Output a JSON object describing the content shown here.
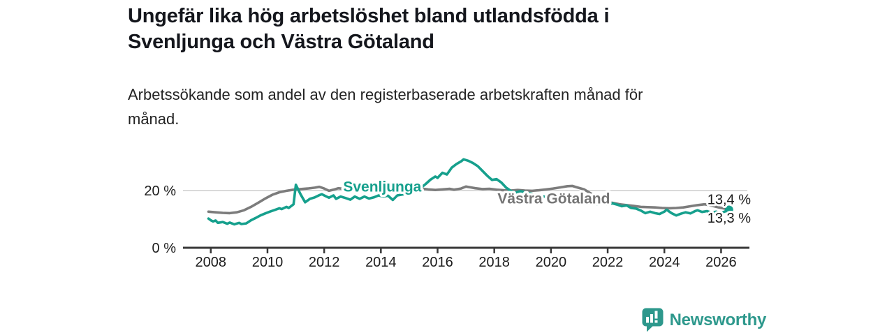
{
  "header": {
    "title_lines": [
      "Ungefär lika hög arbetslöshet bland utlandsfödda i",
      "Svenljunga och Västra Götaland"
    ],
    "subtitle_lines": [
      "Arbetssökande som andel av den registerbaserade arbetskraften månad för",
      "månad."
    ]
  },
  "footer": {
    "brand": "Newsworthy"
  },
  "colors": {
    "accent_teal": "#16a08d",
    "series_gray": "#7c7c7c",
    "gray_label": "#757575",
    "axis": "#383838",
    "grid": "#cdcdcd",
    "text": "#1c1c1c",
    "brand": "#2d988c",
    "halo": "#ffffff"
  },
  "chart_data": {
    "type": "line",
    "title": "Ungefär lika hög arbetslöshet bland utlandsfödda i Svenljunga och Västra Götaland",
    "subtitle": "Arbetssökande som andel av den registerbaserade arbetskraften månad för månad.",
    "xlabel": "",
    "ylabel": "",
    "grid": "single horizontal gridline at 20 %",
    "legend_position": "inline labels on lines",
    "x_range": [
      2007.02,
      2027.0
    ],
    "y_range": [
      0,
      35.85
    ],
    "x_ticks": [
      {
        "value": 2008,
        "label": "2008"
      },
      {
        "value": 2010,
        "label": "2010"
      },
      {
        "value": 2012,
        "label": "2012"
      },
      {
        "value": 2014,
        "label": "2014"
      },
      {
        "value": 2016,
        "label": "2016"
      },
      {
        "value": 2018,
        "label": "2018"
      },
      {
        "value": 2020,
        "label": "2020"
      },
      {
        "value": 2022,
        "label": "2022"
      },
      {
        "value": 2024,
        "label": "2024"
      },
      {
        "value": 2026,
        "label": "2026"
      }
    ],
    "y_ticks": [
      {
        "value": 0,
        "label": "0 %"
      },
      {
        "value": 20,
        "label": "20 %"
      }
    ],
    "series": [
      {
        "name": "Västra Götaland",
        "color": "#7c7c7c",
        "label_color": "#757575",
        "end_label": "13,4 %",
        "label_at": [
          2020.1,
          17.2
        ],
        "end_dot": false,
        "points": [
          [
            2007.92,
            12.6
          ],
          [
            2008.17,
            12.4
          ],
          [
            2008.42,
            12.2
          ],
          [
            2008.67,
            12.1
          ],
          [
            2008.92,
            12.4
          ],
          [
            2009.17,
            13.1
          ],
          [
            2009.42,
            14.3
          ],
          [
            2009.67,
            15.7
          ],
          [
            2009.92,
            17.2
          ],
          [
            2010.17,
            18.5
          ],
          [
            2010.42,
            19.4
          ],
          [
            2010.67,
            19.9
          ],
          [
            2010.92,
            20.3
          ],
          [
            2011.17,
            20.5
          ],
          [
            2011.42,
            20.7
          ],
          [
            2011.67,
            21.0
          ],
          [
            2011.83,
            21.3
          ],
          [
            2012.0,
            20.7
          ],
          [
            2012.17,
            19.9
          ],
          [
            2012.33,
            20.3
          ],
          [
            2012.5,
            20.8
          ],
          [
            2012.75,
            20.5
          ],
          [
            2013.0,
            20.3
          ],
          [
            2013.25,
            20.6
          ],
          [
            2013.5,
            20.4
          ],
          [
            2013.75,
            20.7
          ],
          [
            2013.92,
            21.0
          ],
          [
            2014.17,
            20.6
          ],
          [
            2014.42,
            20.5
          ],
          [
            2014.67,
            20.7
          ],
          [
            2014.92,
            20.3
          ],
          [
            2015.17,
            20.5
          ],
          [
            2015.42,
            20.7
          ],
          [
            2015.67,
            20.4
          ],
          [
            2015.92,
            20.2
          ],
          [
            2016.17,
            20.4
          ],
          [
            2016.42,
            20.6
          ],
          [
            2016.58,
            20.3
          ],
          [
            2016.83,
            20.7
          ],
          [
            2017.0,
            21.4
          ],
          [
            2017.17,
            21.1
          ],
          [
            2017.33,
            20.8
          ],
          [
            2017.58,
            20.5
          ],
          [
            2017.83,
            20.6
          ],
          [
            2018.08,
            20.3
          ],
          [
            2018.33,
            20.1
          ],
          [
            2018.58,
            20.0
          ],
          [
            2018.83,
            20.2
          ],
          [
            2019.08,
            20.0
          ],
          [
            2019.33,
            19.9
          ],
          [
            2019.58,
            20.1
          ],
          [
            2019.83,
            20.4
          ],
          [
            2020.08,
            20.7
          ],
          [
            2020.33,
            21.1
          ],
          [
            2020.58,
            21.5
          ],
          [
            2020.75,
            21.6
          ],
          [
            2020.92,
            21.1
          ],
          [
            2021.17,
            20.4
          ],
          [
            2021.42,
            18.9
          ],
          [
            2021.67,
            16.9
          ],
          [
            2021.92,
            15.9
          ],
          [
            2022.17,
            15.7
          ],
          [
            2022.42,
            15.2
          ],
          [
            2022.67,
            14.9
          ],
          [
            2022.92,
            14.6
          ],
          [
            2023.17,
            14.3
          ],
          [
            2023.42,
            14.2
          ],
          [
            2023.67,
            14.1
          ],
          [
            2023.92,
            13.9
          ],
          [
            2024.17,
            13.8
          ],
          [
            2024.42,
            13.9
          ],
          [
            2024.67,
            14.1
          ],
          [
            2024.92,
            14.5
          ],
          [
            2025.17,
            14.9
          ],
          [
            2025.42,
            15.2
          ],
          [
            2025.58,
            14.9
          ],
          [
            2025.75,
            14.5
          ],
          [
            2025.92,
            14.1
          ],
          [
            2026.28,
            13.4
          ]
        ]
      },
      {
        "name": "Svenljunga",
        "color": "#16a08d",
        "label_color": "#16a08d",
        "end_label": "13,3 %",
        "label_at": [
          2014.05,
          21.3
        ],
        "end_dot": true,
        "points": [
          [
            2007.92,
            10.2
          ],
          [
            2008.0,
            9.6
          ],
          [
            2008.08,
            9.2
          ],
          [
            2008.17,
            9.5
          ],
          [
            2008.25,
            8.7
          ],
          [
            2008.42,
            9.0
          ],
          [
            2008.58,
            8.4
          ],
          [
            2008.67,
            8.8
          ],
          [
            2008.83,
            8.2
          ],
          [
            2009.0,
            8.7
          ],
          [
            2009.08,
            8.3
          ],
          [
            2009.25,
            8.5
          ],
          [
            2009.42,
            9.6
          ],
          [
            2009.58,
            10.4
          ],
          [
            2009.75,
            11.3
          ],
          [
            2009.92,
            12.0
          ],
          [
            2010.08,
            12.6
          ],
          [
            2010.25,
            13.2
          ],
          [
            2010.42,
            13.8
          ],
          [
            2010.5,
            13.5
          ],
          [
            2010.67,
            14.3
          ],
          [
            2010.75,
            13.9
          ],
          [
            2010.92,
            15.2
          ],
          [
            2011.0,
            22.0
          ],
          [
            2011.17,
            18.6
          ],
          [
            2011.33,
            15.9
          ],
          [
            2011.5,
            17.1
          ],
          [
            2011.67,
            17.6
          ],
          [
            2011.83,
            18.4
          ],
          [
            2011.92,
            18.7
          ],
          [
            2012.08,
            17.9
          ],
          [
            2012.17,
            17.5
          ],
          [
            2012.33,
            18.3
          ],
          [
            2012.42,
            17.1
          ],
          [
            2012.58,
            17.9
          ],
          [
            2012.75,
            17.4
          ],
          [
            2012.92,
            16.8
          ],
          [
            2013.08,
            17.9
          ],
          [
            2013.25,
            17.1
          ],
          [
            2013.42,
            17.9
          ],
          [
            2013.58,
            17.2
          ],
          [
            2013.75,
            17.6
          ],
          [
            2013.92,
            18.3
          ],
          [
            2014.08,
            17.9
          ],
          [
            2014.25,
            18.2
          ],
          [
            2014.42,
            16.7
          ],
          [
            2014.58,
            18.3
          ],
          [
            2014.75,
            18.6
          ],
          [
            2014.92,
            18.9
          ],
          [
            2015.08,
            19.4
          ],
          [
            2015.25,
            20.1
          ],
          [
            2015.42,
            21.0
          ],
          [
            2015.58,
            22.3
          ],
          [
            2015.75,
            23.8
          ],
          [
            2015.92,
            24.9
          ],
          [
            2016.0,
            24.4
          ],
          [
            2016.17,
            26.2
          ],
          [
            2016.33,
            25.6
          ],
          [
            2016.5,
            28.0
          ],
          [
            2016.67,
            29.3
          ],
          [
            2016.83,
            30.2
          ],
          [
            2016.92,
            30.9
          ],
          [
            2017.08,
            30.4
          ],
          [
            2017.25,
            29.6
          ],
          [
            2017.42,
            28.5
          ],
          [
            2017.58,
            26.9
          ],
          [
            2017.75,
            25.2
          ],
          [
            2017.92,
            23.7
          ],
          [
            2018.08,
            24.0
          ],
          [
            2018.25,
            22.8
          ],
          [
            2018.42,
            21.0
          ],
          [
            2018.58,
            19.9
          ],
          [
            2018.75,
            19.3
          ],
          [
            2018.92,
            19.8
          ],
          [
            2019.17,
            19.2
          ],
          [
            2019.42,
            18.6
          ],
          [
            2019.67,
            18.0
          ],
          [
            2019.92,
            17.6
          ],
          [
            2020.17,
            17.9
          ],
          [
            2020.42,
            17.2
          ],
          [
            2020.67,
            16.7
          ],
          [
            2020.92,
            16.2
          ],
          [
            2021.17,
            15.8
          ],
          [
            2021.42,
            15.5
          ],
          [
            2021.67,
            15.1
          ],
          [
            2021.83,
            15.4
          ],
          [
            2022.0,
            15.1
          ],
          [
            2022.17,
            15.5
          ],
          [
            2022.33,
            15.1
          ],
          [
            2022.5,
            14.5
          ],
          [
            2022.67,
            14.8
          ],
          [
            2022.83,
            13.9
          ],
          [
            2023.0,
            13.7
          ],
          [
            2023.17,
            13.0
          ],
          [
            2023.33,
            12.1
          ],
          [
            2023.5,
            12.6
          ],
          [
            2023.67,
            12.1
          ],
          [
            2023.83,
            11.8
          ],
          [
            2024.0,
            12.6
          ],
          [
            2024.08,
            13.3
          ],
          [
            2024.25,
            12.1
          ],
          [
            2024.42,
            11.3
          ],
          [
            2024.58,
            11.9
          ],
          [
            2024.75,
            12.4
          ],
          [
            2024.92,
            12.0
          ],
          [
            2025.08,
            12.8
          ],
          [
            2025.17,
            13.1
          ],
          [
            2025.33,
            12.5
          ],
          [
            2025.5,
            12.8
          ],
          [
            2025.67,
            12.3
          ],
          [
            2025.83,
            12.6
          ],
          [
            2026.0,
            12.1
          ],
          [
            2026.28,
            13.3
          ]
        ]
      }
    ],
    "end_value_labels": [
      "13,4 %",
      "13,3 %"
    ]
  }
}
